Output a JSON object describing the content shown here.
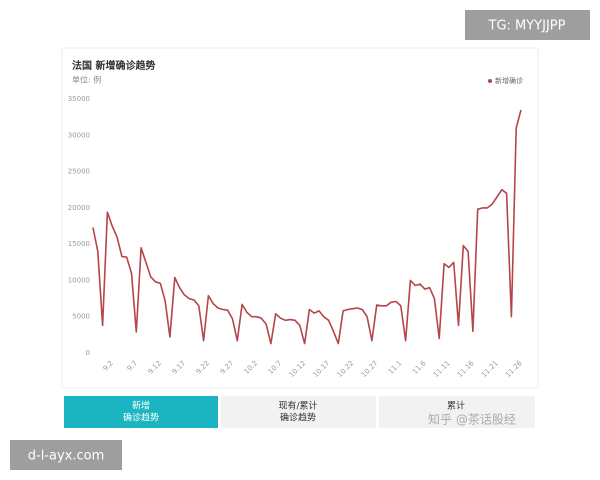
{
  "chart_data": {
    "type": "line",
    "title": "法国 新增确诊趋势",
    "subtitle": "单位: 例",
    "categories": [
      null,
      null,
      null,
      null,
      "9.2",
      null,
      null,
      null,
      null,
      "9.7",
      null,
      null,
      null,
      null,
      "9.12",
      null,
      null,
      null,
      null,
      "9.17",
      null,
      null,
      null,
      null,
      "9.22",
      null,
      null,
      null,
      null,
      "9.27",
      null,
      null,
      null,
      null,
      "10.2",
      null,
      null,
      null,
      null,
      "10.7",
      null,
      null,
      null,
      null,
      "10.12",
      null,
      null,
      null,
      null,
      "10.17",
      null,
      null,
      null,
      null,
      "10.22",
      null,
      null,
      null,
      null,
      "10.27",
      null,
      null,
      null,
      null,
      "11.1",
      null,
      null,
      null,
      null,
      "11.6",
      null,
      null,
      null,
      null,
      "11.11",
      null,
      null,
      null,
      null,
      "11.16",
      null,
      null,
      null,
      null,
      "11.21",
      null,
      null,
      null,
      null,
      "11.26"
    ],
    "series": [
      {
        "name": "新增确诊",
        "color": "#b5454b",
        "values": [
          17300,
          14000,
          3800,
          19400,
          17500,
          16000,
          13300,
          13200,
          11000,
          2900,
          14500,
          12500,
          10500,
          9800,
          9600,
          7200,
          2200,
          10400,
          9000,
          8000,
          7500,
          7300,
          6500,
          1700,
          7900,
          6800,
          6200,
          6000,
          5900,
          4700,
          1700,
          6700,
          5600,
          5000,
          5000,
          4800,
          4000,
          1300,
          5400,
          4800,
          4500,
          4600,
          4500,
          3800,
          1300,
          6000,
          5500,
          5800,
          5000,
          4500,
          3000,
          1300,
          5800,
          6000,
          6100,
          6200,
          6000,
          5000,
          1700,
          6600,
          6500,
          6500,
          7000,
          7100,
          6500,
          1700,
          10000,
          9300,
          9500,
          8800,
          9000,
          7500,
          2000,
          12300,
          11800,
          12500,
          3800,
          14800,
          14000,
          3000,
          19800,
          20000,
          20000,
          20500,
          21500,
          22500,
          22000,
          5000,
          31000,
          33500
        ]
      }
    ],
    "ylim": [
      0,
      35000
    ],
    "yticks": [
      0,
      5000,
      10000,
      15000,
      20000,
      25000,
      30000,
      35000
    ],
    "grid": false,
    "legend": "top-right"
  },
  "ui": {
    "tabs": [
      [
        "新增",
        "确诊趋势"
      ],
      [
        "现有/累计",
        "确诊趋势"
      ],
      [
        "累计"
      ]
    ],
    "watermarks": [
      "TG: MYYJJPP",
      "d-l-ayx.com",
      "知乎 @茶话股经"
    ]
  }
}
